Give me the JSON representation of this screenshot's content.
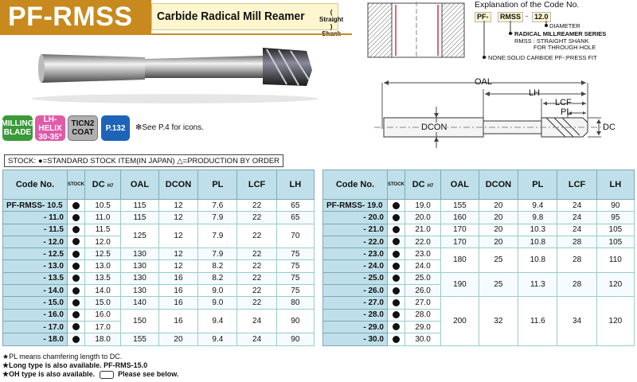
{
  "header": {
    "brand": "PF-RMSS",
    "subtitle": "Carbide Radical Mill Reamer",
    "subtitle_paren_1": "Straight",
    "subtitle_paren_2": "Shank"
  },
  "badges": {
    "milling_1": "MILLING",
    "milling_2": "BLADE",
    "helix_1": "LH-HELIX",
    "helix_2": "30-35°",
    "coat_1": "TICN2",
    "coat_2": "COAT",
    "page": "P.132",
    "see_icons": "✻See P.4 for icons."
  },
  "explanation": {
    "title": "Explanation of the Code No.",
    "code_pf": "PF-",
    "code_rmss": "RMSS",
    "code_dash": "-",
    "code_num": "12.0",
    "diameter": "DIAMETER",
    "series": "RADICAL MILLREAMER SERIES",
    "rmss_note_1": "RMSS : STRAIGHT SHANK",
    "rmss_note_2": "FOR THROUGH HOLE",
    "none_note": "NONE:SOLID CARBIDE  PF-:PRESS FIT"
  },
  "drawing": {
    "oal": "OAL",
    "lh": "LH",
    "lcf": "LCF",
    "pl": "PL",
    "dcon": "DCON",
    "dc": "DC"
  },
  "stock_legend": "STOCK: ●=STANDARD STOCK ITEM(IN JAPAN)  △=PRODUCTION BY ORDER",
  "table_headers": {
    "code": "Code No.",
    "stock": "STOCK",
    "dc": "DC",
    "dc_tol": "H7",
    "oal": "OAL",
    "dcon": "DCON",
    "pl": "PL",
    "lcf": "LCF",
    "lh": "LH"
  },
  "left_table": [
    {
      "code": "PF-RMSS- 10.5",
      "dc": "10.5",
      "oal": "115",
      "dcon": "12",
      "pl": "7.6",
      "lcf": "22",
      "lh": "65"
    },
    {
      "code": "- 11.0",
      "dc": "11.0",
      "oal": "115",
      "dcon": "12",
      "pl": "7.9",
      "lcf": "22",
      "lh": "65"
    },
    {
      "code": "- 11.5",
      "dc": "11.5",
      "oal": "125",
      "dcon": "12",
      "pl": "7.9",
      "lcf": "22",
      "lh": "70"
    },
    {
      "code": "- 12.0",
      "dc": "12.0"
    },
    {
      "code": "- 12.5",
      "dc": "12.5",
      "oal": "130",
      "dcon": "12",
      "pl": "7.9",
      "lcf": "22",
      "lh": "75"
    },
    {
      "code": "- 13.0",
      "dc": "13.0",
      "oal": "130",
      "dcon": "12",
      "pl": "8.2",
      "lcf": "22",
      "lh": "75"
    },
    {
      "code": "- 13.5",
      "dc": "13.5",
      "oal": "130",
      "dcon": "16",
      "pl": "8.2",
      "lcf": "22",
      "lh": "75"
    },
    {
      "code": "- 14.0",
      "dc": "14.0",
      "oal": "130",
      "dcon": "16",
      "pl": "9.0",
      "lcf": "22",
      "lh": "75"
    },
    {
      "code": "- 15.0",
      "dc": "15.0",
      "oal": "140",
      "dcon": "16",
      "pl": "9.0",
      "lcf": "22",
      "lh": "80"
    },
    {
      "code": "- 16.0",
      "dc": "16.0",
      "oal": "150",
      "dcon": "16",
      "pl": "9.4",
      "lcf": "24",
      "lh": "90"
    },
    {
      "code": "- 17.0",
      "dc": "17.0"
    },
    {
      "code": "- 18.0",
      "dc": "18.0",
      "oal": "155",
      "dcon": "20",
      "pl": "9.4",
      "lcf": "24",
      "lh": "90"
    }
  ],
  "right_table": [
    {
      "code": "PF-RMSS- 19.0",
      "dc": "19.0",
      "oal": "155",
      "dcon": "20",
      "pl": "9.4",
      "lcf": "24",
      "lh": "90"
    },
    {
      "code": "- 20.0",
      "dc": "20.0",
      "oal": "160",
      "dcon": "20",
      "pl": "9.8",
      "lcf": "24",
      "lh": "95"
    },
    {
      "code": "- 21.0",
      "dc": "21.0",
      "oal": "170",
      "dcon": "20",
      "pl": "10.3",
      "lcf": "24",
      "lh": "105"
    },
    {
      "code": "- 22.0",
      "dc": "22.0",
      "oal": "170",
      "dcon": "20",
      "pl": "10.8",
      "lcf": "28",
      "lh": "105"
    },
    {
      "code": "- 23.0",
      "dc": "23.0",
      "oal": "180",
      "dcon": "25",
      "pl": "10.8",
      "lcf": "28",
      "lh": "110"
    },
    {
      "code": "- 24.0",
      "dc": "24.0"
    },
    {
      "code": "- 25.0",
      "dc": "25.0",
      "oal": "190",
      "dcon": "25",
      "pl": "11.3",
      "lcf": "28",
      "lh": "120"
    },
    {
      "code": "- 26.0",
      "dc": "26.0"
    },
    {
      "code": "- 27.0",
      "dc": "27.0",
      "oal": "200",
      "dcon": "32",
      "pl": "11.6",
      "lcf": "34",
      "lh": "120"
    },
    {
      "code": "- 28.0",
      "dc": "28.0"
    },
    {
      "code": "- 29.0",
      "dc": "29.0"
    },
    {
      "code": "- 30.0",
      "dc": "30.0"
    }
  ],
  "footnotes": {
    "n1": "★PL means chamfering length to    DC.",
    "n2": "★Long type is also available. PF-RMS-15.0",
    "n3": "★OH type is also available.",
    "n3_b": "Please see below."
  }
}
